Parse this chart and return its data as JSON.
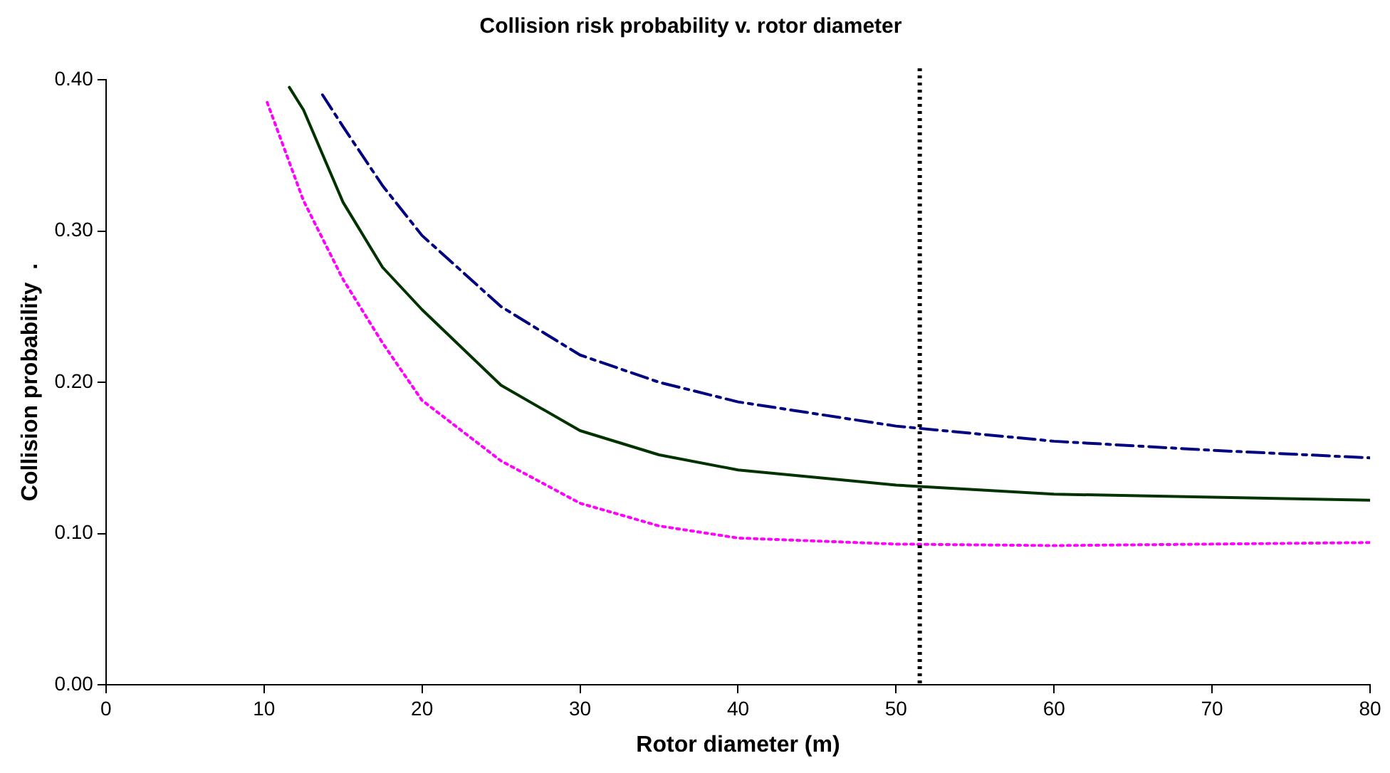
{
  "chart_data": {
    "type": "line",
    "title": "Collision risk probability v. rotor diameter",
    "xlabel": "Rotor diameter (m)",
    "ylabel": "Collision probability  .",
    "xlim": [
      0,
      80
    ],
    "xticks": [
      0,
      10,
      20,
      30,
      40,
      50,
      60,
      70,
      80
    ],
    "ylim": [
      0,
      0.4
    ],
    "yticks": [
      {
        "value": 0,
        "label": "0.00"
      },
      {
        "value": 0.1,
        "label": "0.10"
      },
      {
        "value": 0.2,
        "label": "0.20"
      },
      {
        "value": 0.3,
        "label": "0.30"
      },
      {
        "value": 0.4,
        "label": "0.40"
      }
    ],
    "grid": false,
    "legend": false,
    "marker": "none",
    "series": [
      {
        "color": "#ff00ff",
        "line_style": "dotted",
        "x": [
          10.2,
          12.5,
          15,
          17.5,
          20,
          25,
          30,
          35,
          40,
          50,
          60,
          70,
          80
        ],
        "values": [
          0.385,
          0.32,
          0.268,
          0.226,
          0.188,
          0.148,
          0.12,
          0.105,
          0.097,
          0.093,
          0.092,
          0.093,
          0.094
        ]
      },
      {
        "color": "#003300",
        "line_style": "solid",
        "x": [
          11.6,
          12.5,
          15,
          17.5,
          20,
          25,
          30,
          35,
          40,
          50,
          60,
          70,
          80
        ],
        "values": [
          0.395,
          0.38,
          0.319,
          0.276,
          0.248,
          0.198,
          0.168,
          0.152,
          0.142,
          0.132,
          0.126,
          0.124,
          0.122
        ]
      },
      {
        "color": "#000080",
        "line_style": "dashed",
        "x": [
          13.7,
          15,
          17.5,
          20,
          25,
          30,
          35,
          40,
          50,
          60,
          70,
          80
        ],
        "values": [
          0.39,
          0.369,
          0.33,
          0.297,
          0.25,
          0.218,
          0.2,
          0.187,
          0.171,
          0.161,
          0.155,
          0.15
        ]
      }
    ],
    "ref_lines": [
      {
        "axis": "x",
        "value": 51.5,
        "color": "#000000",
        "line_style": "dotted"
      }
    ]
  }
}
